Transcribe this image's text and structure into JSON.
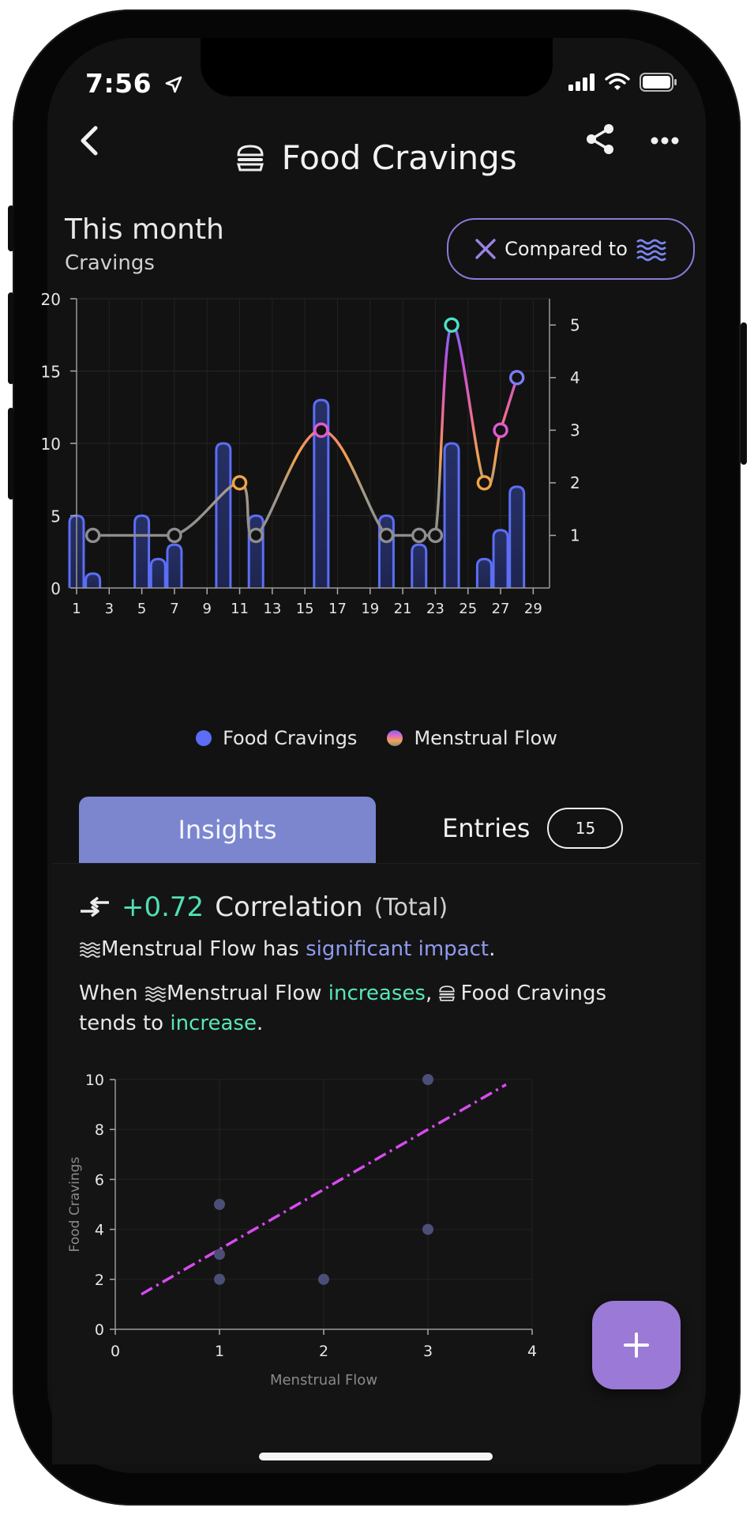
{
  "status_bar": {
    "time": "7:56"
  },
  "header": {
    "title": "Food Cravings",
    "icon": "burger-icon"
  },
  "period": {
    "title": "This month",
    "subtitle": "Cravings",
    "compare_label": "Compared to"
  },
  "legend": {
    "series1": "Food Cravings",
    "series2": "Menstrual Flow"
  },
  "tabs": {
    "insights": "Insights",
    "entries": "Entries",
    "entries_count": "15"
  },
  "insight": {
    "correlation_value": "+0.72",
    "correlation_label": "Correlation",
    "correlation_scope": "(Total)",
    "impact_subject": "Menstrual Flow",
    "impact_prefix": " has ",
    "impact_strength": "significant impact",
    "impact_suffix": ".",
    "when": "When ",
    "cause": "Menstrual Flow",
    "cause_dir": "increases",
    "comma": ", ",
    "effect": "Food Cravings",
    "tends_to": "tends to ",
    "effect_dir": "increase",
    "period_end": "."
  },
  "colors": {
    "accent": "#7b86cf",
    "positive": "#4fe0b5",
    "bar": "#5b6ef5",
    "trend": "#d84bf0",
    "fab": "#9a7ad6"
  },
  "chart_data": [
    {
      "type": "bar",
      "x_ticks": [
        1,
        3,
        5,
        7,
        9,
        11,
        13,
        15,
        17,
        19,
        21,
        23,
        25,
        27,
        29
      ],
      "y_left_ticks": [
        0,
        5,
        10,
        15,
        20
      ],
      "y_right_ticks": [
        1,
        2,
        3,
        4,
        5
      ],
      "ylim_left": [
        0,
        20
      ],
      "ylim_right": [
        0,
        5.5
      ],
      "xlim": [
        1,
        30
      ],
      "bars": [
        {
          "x": 1,
          "y": 5
        },
        {
          "x": 2,
          "y": 1
        },
        {
          "x": 5,
          "y": 5
        },
        {
          "x": 6,
          "y": 2
        },
        {
          "x": 7,
          "y": 3
        },
        {
          "x": 10,
          "y": 10
        },
        {
          "x": 12,
          "y": 5
        },
        {
          "x": 16,
          "y": 13
        },
        {
          "x": 20,
          "y": 5
        },
        {
          "x": 22,
          "y": 3
        },
        {
          "x": 24,
          "y": 10
        },
        {
          "x": 26,
          "y": 2
        },
        {
          "x": 27,
          "y": 4
        },
        {
          "x": 28,
          "y": 7
        }
      ],
      "line": [
        {
          "x": 2,
          "y": 1
        },
        {
          "x": 7,
          "y": 1
        },
        {
          "x": 11,
          "y": 2
        },
        {
          "x": 12,
          "y": 1
        },
        {
          "x": 16,
          "y": 3
        },
        {
          "x": 20,
          "y": 1
        },
        {
          "x": 22,
          "y": 1
        },
        {
          "x": 23,
          "y": 1
        },
        {
          "x": 24,
          "y": 5
        },
        {
          "x": 26,
          "y": 2
        },
        {
          "x": 27,
          "y": 3
        },
        {
          "x": 28,
          "y": 4
        }
      ],
      "grid": true
    },
    {
      "type": "scatter",
      "xlabel": "Menstrual Flow",
      "ylabel": "Food Cravings",
      "xlim": [
        0,
        4
      ],
      "ylim": [
        0,
        10
      ],
      "x_ticks": [
        0,
        1,
        2,
        3,
        4
      ],
      "y_ticks": [
        0,
        2,
        4,
        6,
        8,
        10
      ],
      "points": [
        {
          "x": 1,
          "y": 5
        },
        {
          "x": 1,
          "y": 3
        },
        {
          "x": 1,
          "y": 2
        },
        {
          "x": 2,
          "y": 2
        },
        {
          "x": 3,
          "y": 4
        },
        {
          "x": 3,
          "y": 10
        }
      ],
      "trend_line": [
        {
          "x": 0.25,
          "y": 1.4
        },
        {
          "x": 3.75,
          "y": 9.8
        }
      ],
      "grid": true
    }
  ]
}
